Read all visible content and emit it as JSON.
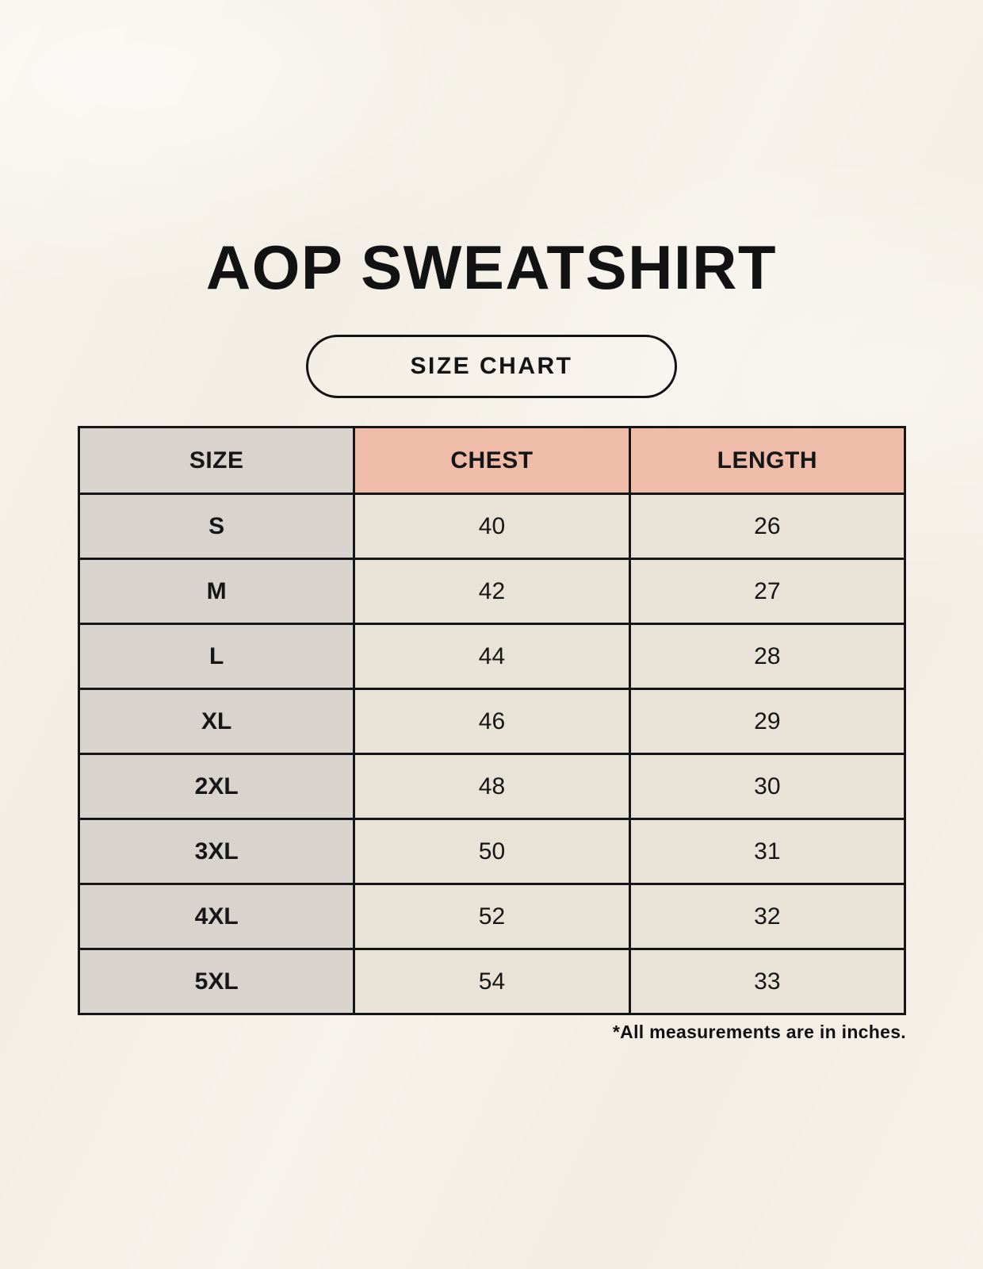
{
  "title": "AOP SWEATSHIRT",
  "badge_label": "SIZE CHART",
  "footnote": "*All measurements are in inches.",
  "chart_data": {
    "type": "table",
    "title": "AOP SWEATSHIRT",
    "subtitle": "SIZE CHART",
    "units": "inches",
    "columns": [
      "SIZE",
      "CHEST",
      "LENGTH"
    ],
    "rows": [
      {
        "size": "S",
        "chest": "40",
        "length": "26"
      },
      {
        "size": "M",
        "chest": "42",
        "length": "27"
      },
      {
        "size": "L",
        "chest": "44",
        "length": "28"
      },
      {
        "size": "XL",
        "chest": "46",
        "length": "29"
      },
      {
        "size": "2XL",
        "chest": "48",
        "length": "30"
      },
      {
        "size": "3XL",
        "chest": "50",
        "length": "31"
      },
      {
        "size": "4XL",
        "chest": "52",
        "length": "32"
      },
      {
        "size": "5XL",
        "chest": "54",
        "length": "33"
      }
    ]
  },
  "colors": {
    "background": "#f3eee4",
    "size_column_bg": "#d9d3cd",
    "measure_header_bg": "#efbcaa",
    "measure_cell_bg": "#e9e2d6",
    "border": "#161616",
    "text": "#161616"
  }
}
